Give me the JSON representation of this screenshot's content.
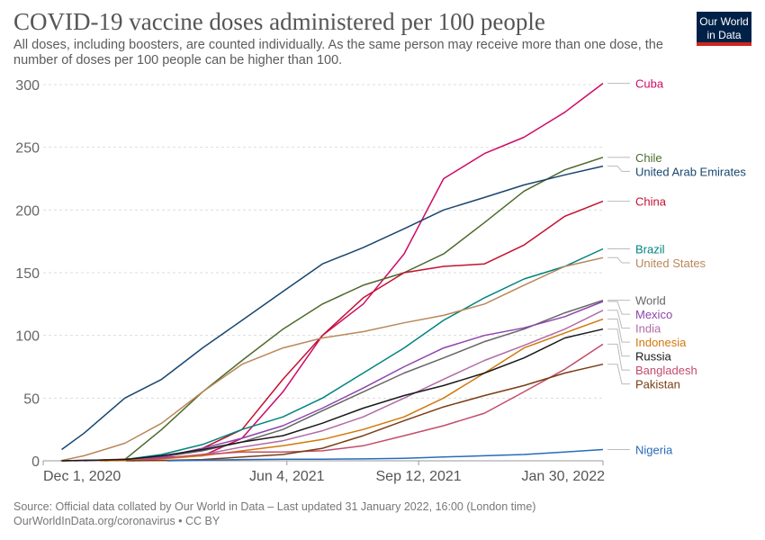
{
  "header": {
    "title": "COVID-19 vaccine doses administered per 100 people",
    "subtitle": "All doses, including boosters, are counted individually. As the same person may receive more than one dose, the number of doses per 100 people can be higher than 100.",
    "logo_line1": "Our World",
    "logo_line2": "in Data"
  },
  "footer": {
    "source": "Source: Official data collated by Our World in Data – Last updated 31 January 2022, 16:00 (London time)",
    "url": "OurWorldInData.org/coronavirus • CC BY"
  },
  "chart_data": {
    "type": "line",
    "title": "COVID-19 vaccine doses administered per 100 people",
    "xlabel": "",
    "ylabel": "",
    "xlim": [
      "2020-12-01",
      "2022-01-30"
    ],
    "ylim": [
      0,
      300
    ],
    "y_ticks": [
      0,
      50,
      100,
      150,
      200,
      250,
      300
    ],
    "x_ticks": [
      {
        "date": "2020-12-01",
        "label": "Dec 1, 2020"
      },
      {
        "date": "2021-06-04",
        "label": "Jun 4, 2021"
      },
      {
        "date": "2021-09-12",
        "label": "Sep 12, 2021"
      },
      {
        "date": "2022-01-30",
        "label": "Jan 30, 2022"
      }
    ],
    "grid": "horizontal dashed",
    "legend": "labels at right end of lines",
    "series": [
      {
        "name": "Cuba",
        "color": "#cf0a66",
        "x": [
          "2021-01-01",
          "2021-04-01",
          "2021-05-01",
          "2021-06-01",
          "2021-07-01",
          "2021-08-01",
          "2021-09-01",
          "2021-10-01",
          "2021-11-01",
          "2021-12-01",
          "2022-01-01",
          "2022-01-30"
        ],
        "y": [
          0,
          4,
          18,
          55,
          100,
          125,
          165,
          225,
          245,
          258,
          278,
          301
        ]
      },
      {
        "name": "Chile",
        "color": "#4c6a2b",
        "x": [
          "2021-01-25",
          "2021-02-01",
          "2021-03-01",
          "2021-04-01",
          "2021-05-01",
          "2021-06-01",
          "2021-07-01",
          "2021-08-01",
          "2021-09-01",
          "2021-10-01",
          "2021-11-01",
          "2021-12-01",
          "2022-01-01",
          "2022-01-30"
        ],
        "y": [
          0,
          1,
          25,
          55,
          80,
          105,
          125,
          140,
          150,
          165,
          190,
          215,
          232,
          242
        ]
      },
      {
        "name": "United Arab Emirates",
        "color": "#18466f",
        "x": [
          "2020-12-15",
          "2021-01-01",
          "2021-02-01",
          "2021-03-01",
          "2021-04-01",
          "2021-05-01",
          "2021-06-01",
          "2021-07-01",
          "2021-08-01",
          "2021-09-01",
          "2021-10-01",
          "2021-11-01",
          "2021-12-01",
          "2022-01-01",
          "2022-01-30"
        ],
        "y": [
          9,
          22,
          50,
          65,
          90,
          112,
          135,
          157,
          170,
          185,
          200,
          210,
          220,
          228,
          235
        ]
      },
      {
        "name": "China",
        "color": "#c3122f",
        "x": [
          "2020-12-15",
          "2021-02-01",
          "2021-03-01",
          "2021-04-01",
          "2021-05-01",
          "2021-06-01",
          "2021-07-01",
          "2021-08-01",
          "2021-09-01",
          "2021-10-01",
          "2021-11-01",
          "2021-12-01",
          "2022-01-01",
          "2022-01-30"
        ],
        "y": [
          0,
          1,
          3,
          10,
          25,
          65,
          100,
          130,
          150,
          155,
          157,
          172,
          195,
          207
        ]
      },
      {
        "name": "Brazil",
        "color": "#00847e",
        "x": [
          "2021-01-17",
          "2021-02-01",
          "2021-03-01",
          "2021-04-01",
          "2021-05-01",
          "2021-06-01",
          "2021-07-01",
          "2021-08-01",
          "2021-09-01",
          "2021-10-01",
          "2021-11-01",
          "2021-12-01",
          "2022-01-01",
          "2022-01-30"
        ],
        "y": [
          0,
          1,
          5,
          13,
          25,
          35,
          50,
          70,
          90,
          112,
          130,
          145,
          155,
          169
        ]
      },
      {
        "name": "United States",
        "color": "#b98759",
        "x": [
          "2020-12-14",
          "2021-01-01",
          "2021-02-01",
          "2021-03-01",
          "2021-04-01",
          "2021-05-01",
          "2021-06-01",
          "2021-07-01",
          "2021-08-01",
          "2021-09-01",
          "2021-10-01",
          "2021-11-01",
          "2021-12-01",
          "2022-01-01",
          "2022-01-30"
        ],
        "y": [
          0,
          4,
          14,
          30,
          55,
          77,
          90,
          98,
          103,
          110,
          116,
          125,
          140,
          155,
          162
        ]
      },
      {
        "name": "World",
        "color": "#666666",
        "x": [
          "2020-12-15",
          "2021-02-01",
          "2021-03-01",
          "2021-04-01",
          "2021-05-01",
          "2021-06-01",
          "2021-07-01",
          "2021-08-01",
          "2021-09-01",
          "2021-10-01",
          "2021-11-01",
          "2021-12-01",
          "2022-01-01",
          "2022-01-30"
        ],
        "y": [
          0,
          1,
          3,
          8,
          15,
          25,
          40,
          55,
          70,
          82,
          95,
          105,
          118,
          128
        ]
      },
      {
        "name": "Mexico",
        "color": "#8e44ad",
        "x": [
          "2020-12-24",
          "2021-02-01",
          "2021-03-01",
          "2021-04-01",
          "2021-05-01",
          "2021-06-01",
          "2021-07-01",
          "2021-08-01",
          "2021-09-01",
          "2021-10-01",
          "2021-11-01",
          "2021-12-01",
          "2022-01-01",
          "2022-01-30"
        ],
        "y": [
          0,
          1,
          3,
          10,
          18,
          28,
          42,
          58,
          75,
          90,
          100,
          106,
          115,
          127
        ]
      },
      {
        "name": "India",
        "color": "#b16ba6",
        "x": [
          "2021-01-16",
          "2021-02-01",
          "2021-03-01",
          "2021-04-01",
          "2021-05-01",
          "2021-06-01",
          "2021-07-01",
          "2021-08-01",
          "2021-09-01",
          "2021-10-01",
          "2021-11-01",
          "2021-12-01",
          "2022-01-01",
          "2022-01-30"
        ],
        "y": [
          0,
          0.5,
          1.5,
          5,
          11,
          16,
          24,
          35,
          50,
          65,
          80,
          92,
          105,
          120
        ]
      },
      {
        "name": "Indonesia",
        "color": "#d1780d",
        "x": [
          "2021-01-13",
          "2021-02-01",
          "2021-03-01",
          "2021-04-01",
          "2021-05-01",
          "2021-06-01",
          "2021-07-01",
          "2021-08-01",
          "2021-09-01",
          "2021-10-01",
          "2021-11-01",
          "2021-12-01",
          "2022-01-01",
          "2022-01-30"
        ],
        "y": [
          0,
          0.3,
          1.5,
          4,
          8,
          12,
          17,
          25,
          35,
          50,
          70,
          90,
          102,
          113
        ]
      },
      {
        "name": "Russia",
        "color": "#1a1a1a",
        "x": [
          "2020-12-15",
          "2021-02-01",
          "2021-03-01",
          "2021-04-01",
          "2021-05-01",
          "2021-06-01",
          "2021-07-01",
          "2021-08-01",
          "2021-09-01",
          "2021-10-01",
          "2021-11-01",
          "2021-12-01",
          "2022-01-01",
          "2022-01-30"
        ],
        "y": [
          0,
          1,
          4,
          9,
          15,
          20,
          30,
          42,
          52,
          60,
          70,
          82,
          98,
          105
        ]
      },
      {
        "name": "Bangladesh",
        "color": "#c24c6b",
        "x": [
          "2021-02-07",
          "2021-03-01",
          "2021-04-01",
          "2021-05-01",
          "2021-06-01",
          "2021-07-01",
          "2021-08-01",
          "2021-09-01",
          "2021-10-01",
          "2021-11-01",
          "2021-12-01",
          "2022-01-01",
          "2022-01-30"
        ],
        "y": [
          0,
          2,
          5,
          7,
          7,
          8,
          12,
          20,
          28,
          38,
          55,
          73,
          93
        ]
      },
      {
        "name": "Pakistan",
        "color": "#7a3d13",
        "x": [
          "2021-02-02",
          "2021-03-01",
          "2021-04-01",
          "2021-05-01",
          "2021-06-01",
          "2021-07-01",
          "2021-08-01",
          "2021-09-01",
          "2021-10-01",
          "2021-11-01",
          "2021-12-01",
          "2022-01-01",
          "2022-01-30"
        ],
        "y": [
          0,
          0.3,
          1,
          3,
          5,
          10,
          20,
          32,
          43,
          52,
          60,
          70,
          77
        ]
      },
      {
        "name": "Nigeria",
        "color": "#286bbb",
        "x": [
          "2021-03-05",
          "2021-04-01",
          "2021-05-01",
          "2021-06-01",
          "2021-07-01",
          "2021-08-01",
          "2021-09-01",
          "2021-10-01",
          "2021-11-01",
          "2021-12-01",
          "2022-01-01",
          "2022-01-30"
        ],
        "y": [
          0,
          0.5,
          1,
          1.2,
          1.3,
          1.5,
          2,
          3,
          4,
          5,
          7,
          9
        ]
      }
    ]
  }
}
